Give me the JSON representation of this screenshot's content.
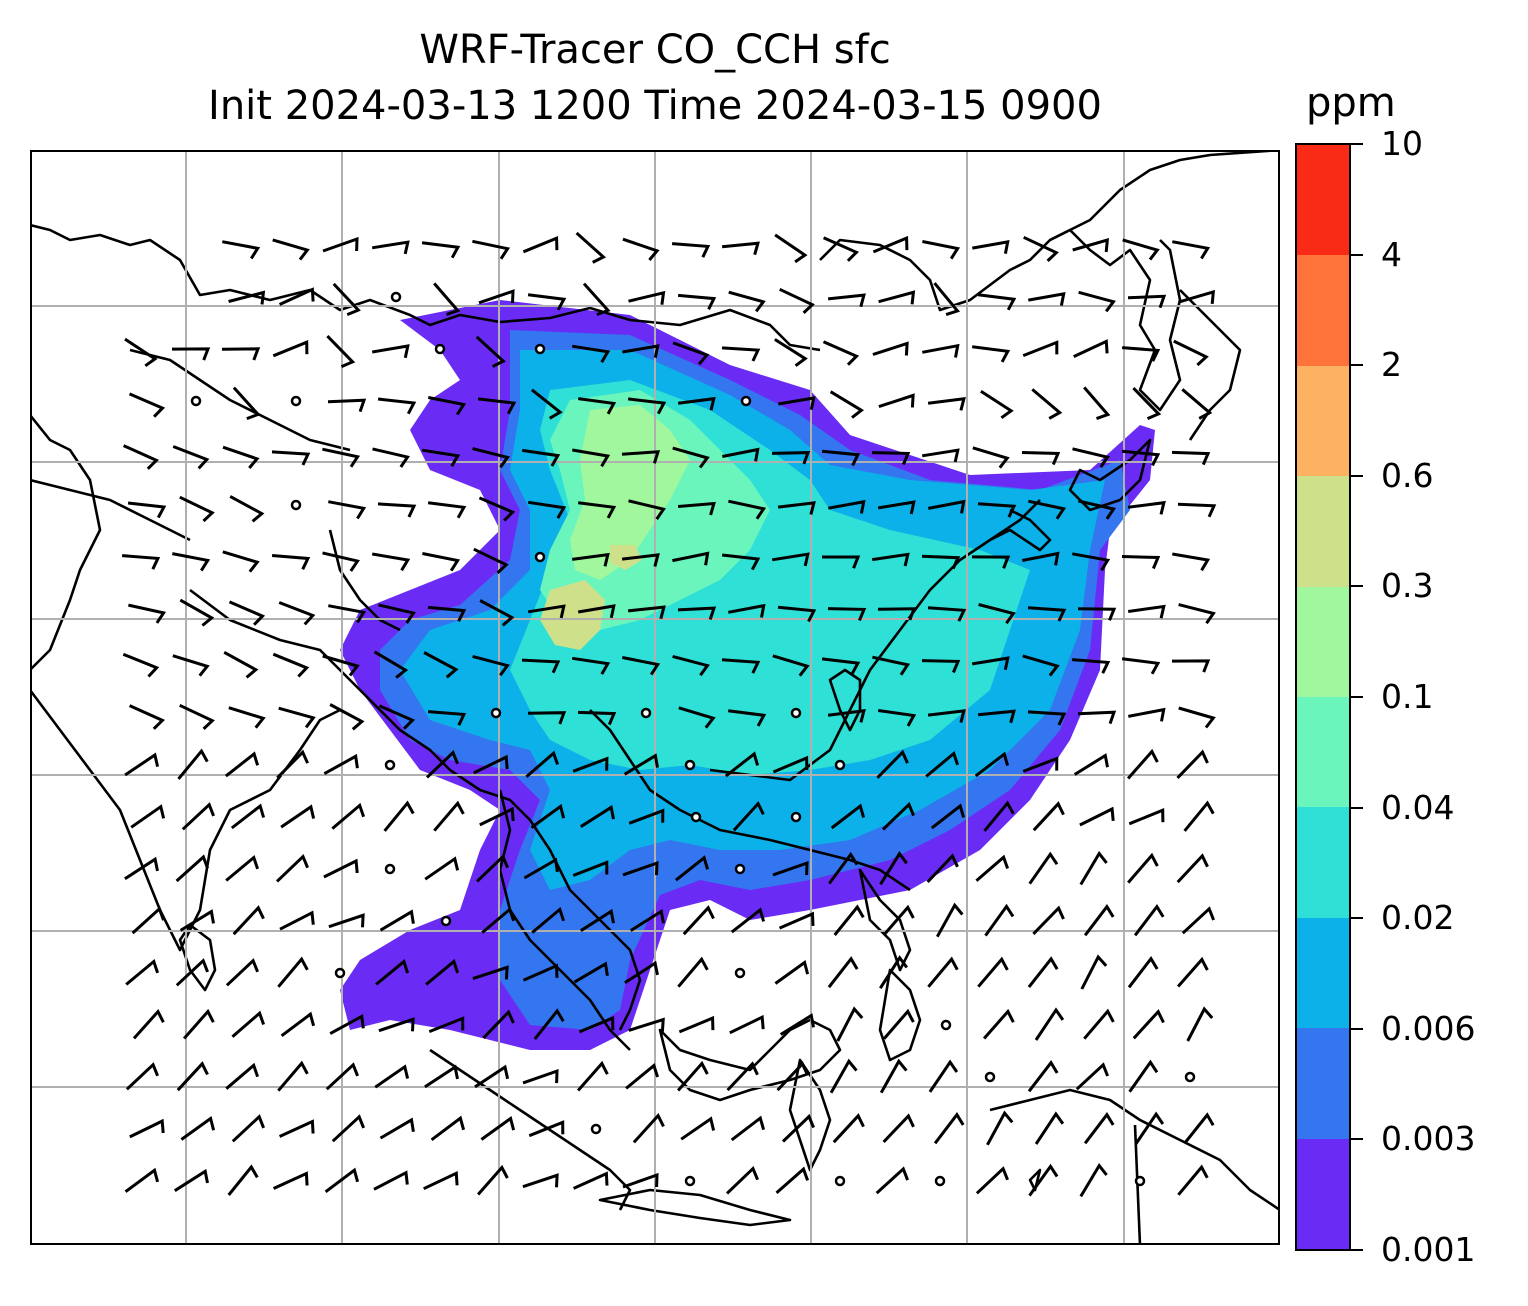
{
  "title": {
    "line1": "WRF-Tracer CO_CCH sfc",
    "line2": "Init 2024-03-13 1200 Time 2024-03-15 0900"
  },
  "colorbar": {
    "unit": "ppm",
    "ticks": [
      "0.001",
      "0.003",
      "0.006",
      "0.02",
      "0.04",
      "0.1",
      "0.3",
      "0.6",
      "2",
      "4",
      "10"
    ],
    "colors": [
      "#6a2cf5",
      "#3476f0",
      "#0bb1e8",
      "#2ee0d6",
      "#6af5bd",
      "#a0f79d",
      "#cfe08a",
      "#fdb262",
      "#fd7339",
      "#f92a16"
    ]
  },
  "map": {
    "field": "CO_CCH",
    "level": "sfc",
    "wind_barbs": true,
    "calm_markers": true,
    "gridlines": true
  }
}
